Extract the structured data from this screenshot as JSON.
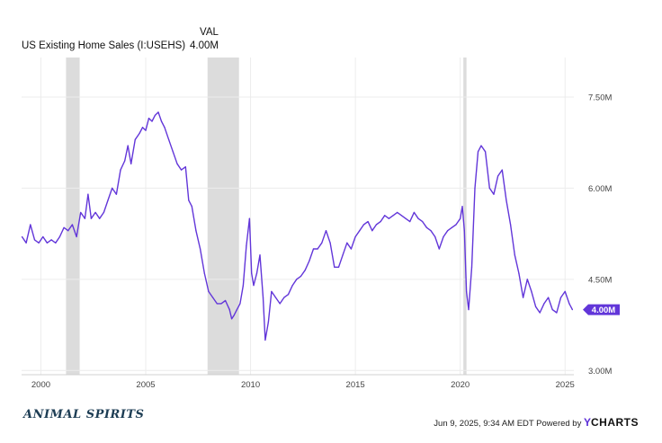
{
  "legend": {
    "header": "VAL",
    "series_name": "US Existing Home Sales (I:USEHS)",
    "series_value": "4.00M"
  },
  "footer": {
    "logo_text": "ANIMAL SPIRITS",
    "timestamp": "Jun 9, 2025, 9:34 AM EDT Powered by",
    "brand_mark": "Y",
    "brand_name": "CHARTS"
  },
  "colors": {
    "line": "#6236d9",
    "recession": "#dcdcdc",
    "grid": "#ececec"
  },
  "chart_data": {
    "type": "line",
    "title": "",
    "xlabel": "",
    "ylabel": "",
    "xlim": [
      1999.08,
      2025.42
    ],
    "ylim": [
      2.93,
      8.15
    ],
    "x_ticks": [
      2000,
      2005,
      2010,
      2015,
      2020,
      2025
    ],
    "x_tick_labels": [
      "2000",
      "2005",
      "2010",
      "2015",
      "2020",
      "2025"
    ],
    "y_ticks": [
      3.0,
      4.5,
      6.0,
      7.5
    ],
    "y_tick_labels": [
      "3.00M",
      "4.50M",
      "6.00M",
      "7.50M"
    ],
    "grid": true,
    "last_value_label": "4.00M",
    "recession_shading": [
      [
        2001.2,
        2001.85
      ],
      [
        2007.95,
        2009.45
      ],
      [
        2020.15,
        2020.3
      ]
    ],
    "series": [
      {
        "name": "US Existing Home Sales (I:USEHS)",
        "points": [
          [
            1999.1,
            5.2
          ],
          [
            1999.3,
            5.1
          ],
          [
            1999.5,
            5.4
          ],
          [
            1999.7,
            5.15
          ],
          [
            1999.9,
            5.1
          ],
          [
            2000.1,
            5.2
          ],
          [
            2000.3,
            5.1
          ],
          [
            2000.5,
            5.15
          ],
          [
            2000.7,
            5.1
          ],
          [
            2000.9,
            5.2
          ],
          [
            2001.1,
            5.35
          ],
          [
            2001.3,
            5.3
          ],
          [
            2001.5,
            5.4
          ],
          [
            2001.7,
            5.2
          ],
          [
            2001.9,
            5.6
          ],
          [
            2002.1,
            5.5
          ],
          [
            2002.25,
            5.9
          ],
          [
            2002.4,
            5.5
          ],
          [
            2002.6,
            5.6
          ],
          [
            2002.8,
            5.5
          ],
          [
            2003.0,
            5.6
          ],
          [
            2003.2,
            5.8
          ],
          [
            2003.4,
            6.0
          ],
          [
            2003.6,
            5.9
          ],
          [
            2003.8,
            6.3
          ],
          [
            2004.0,
            6.45
          ],
          [
            2004.15,
            6.7
          ],
          [
            2004.3,
            6.4
          ],
          [
            2004.5,
            6.8
          ],
          [
            2004.7,
            6.9
          ],
          [
            2004.85,
            7.0
          ],
          [
            2005.0,
            6.95
          ],
          [
            2005.15,
            7.15
          ],
          [
            2005.3,
            7.1
          ],
          [
            2005.45,
            7.2
          ],
          [
            2005.6,
            7.25
          ],
          [
            2005.75,
            7.1
          ],
          [
            2005.9,
            7.0
          ],
          [
            2006.1,
            6.8
          ],
          [
            2006.3,
            6.6
          ],
          [
            2006.5,
            6.4
          ],
          [
            2006.7,
            6.3
          ],
          [
            2006.9,
            6.35
          ],
          [
            2007.05,
            5.8
          ],
          [
            2007.2,
            5.7
          ],
          [
            2007.4,
            5.3
          ],
          [
            2007.6,
            5.0
          ],
          [
            2007.8,
            4.6
          ],
          [
            2008.0,
            4.3
          ],
          [
            2008.2,
            4.2
          ],
          [
            2008.4,
            4.1
          ],
          [
            2008.6,
            4.1
          ],
          [
            2008.8,
            4.15
          ],
          [
            2009.0,
            4.0
          ],
          [
            2009.1,
            3.85
          ],
          [
            2009.2,
            3.9
          ],
          [
            2009.35,
            4.0
          ],
          [
            2009.5,
            4.1
          ],
          [
            2009.65,
            4.4
          ],
          [
            2009.8,
            5.05
          ],
          [
            2009.95,
            5.5
          ],
          [
            2010.05,
            4.6
          ],
          [
            2010.15,
            4.4
          ],
          [
            2010.3,
            4.6
          ],
          [
            2010.45,
            4.9
          ],
          [
            2010.6,
            4.2
          ],
          [
            2010.7,
            3.5
          ],
          [
            2010.85,
            3.8
          ],
          [
            2011.0,
            4.3
          ],
          [
            2011.2,
            4.2
          ],
          [
            2011.4,
            4.1
          ],
          [
            2011.6,
            4.2
          ],
          [
            2011.8,
            4.25
          ],
          [
            2012.0,
            4.4
          ],
          [
            2012.2,
            4.5
          ],
          [
            2012.4,
            4.55
          ],
          [
            2012.6,
            4.65
          ],
          [
            2012.8,
            4.8
          ],
          [
            2013.0,
            5.0
          ],
          [
            2013.2,
            5.0
          ],
          [
            2013.4,
            5.1
          ],
          [
            2013.6,
            5.3
          ],
          [
            2013.8,
            5.1
          ],
          [
            2014.0,
            4.7
          ],
          [
            2014.2,
            4.7
          ],
          [
            2014.4,
            4.9
          ],
          [
            2014.6,
            5.1
          ],
          [
            2014.8,
            5.0
          ],
          [
            2015.0,
            5.2
          ],
          [
            2015.2,
            5.3
          ],
          [
            2015.4,
            5.4
          ],
          [
            2015.6,
            5.45
          ],
          [
            2015.8,
            5.3
          ],
          [
            2016.0,
            5.4
          ],
          [
            2016.2,
            5.45
          ],
          [
            2016.4,
            5.55
          ],
          [
            2016.6,
            5.5
          ],
          [
            2016.8,
            5.55
          ],
          [
            2017.0,
            5.6
          ],
          [
            2017.2,
            5.55
          ],
          [
            2017.4,
            5.5
          ],
          [
            2017.6,
            5.45
          ],
          [
            2017.8,
            5.6
          ],
          [
            2018.0,
            5.5
          ],
          [
            2018.2,
            5.45
          ],
          [
            2018.4,
            5.35
          ],
          [
            2018.6,
            5.3
          ],
          [
            2018.8,
            5.2
          ],
          [
            2019.0,
            5.0
          ],
          [
            2019.2,
            5.2
          ],
          [
            2019.4,
            5.3
          ],
          [
            2019.6,
            5.35
          ],
          [
            2019.8,
            5.4
          ],
          [
            2020.0,
            5.5
          ],
          [
            2020.1,
            5.7
          ],
          [
            2020.2,
            5.3
          ],
          [
            2020.3,
            4.3
          ],
          [
            2020.4,
            4.0
          ],
          [
            2020.55,
            4.7
          ],
          [
            2020.7,
            6.0
          ],
          [
            2020.85,
            6.6
          ],
          [
            2021.0,
            6.7
          ],
          [
            2021.2,
            6.6
          ],
          [
            2021.4,
            6.0
          ],
          [
            2021.6,
            5.9
          ],
          [
            2021.8,
            6.2
          ],
          [
            2022.0,
            6.3
          ],
          [
            2022.2,
            5.8
          ],
          [
            2022.4,
            5.4
          ],
          [
            2022.6,
            4.9
          ],
          [
            2022.8,
            4.6
          ],
          [
            2023.0,
            4.2
          ],
          [
            2023.2,
            4.5
          ],
          [
            2023.4,
            4.3
          ],
          [
            2023.6,
            4.05
          ],
          [
            2023.8,
            3.95
          ],
          [
            2024.0,
            4.1
          ],
          [
            2024.2,
            4.2
          ],
          [
            2024.4,
            4.0
          ],
          [
            2024.6,
            3.95
          ],
          [
            2024.8,
            4.2
          ],
          [
            2025.0,
            4.3
          ],
          [
            2025.2,
            4.1
          ],
          [
            2025.35,
            4.0
          ]
        ]
      }
    ]
  }
}
